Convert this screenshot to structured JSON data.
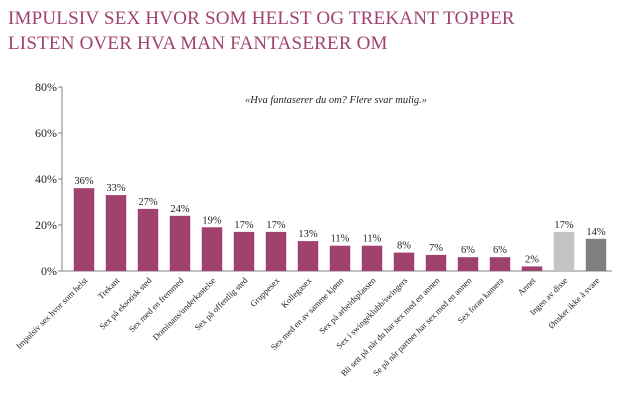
{
  "title": {
    "line1": "IMPULSIV SEX HVOR SOM HELST OG TREKANT TOPPER",
    "line2": "LISTEN OVER HVA MAN FANTASERER OM"
  },
  "chart_data": {
    "type": "bar",
    "annotation": "«Hva fantaserer du om? Flere svar mulig.»",
    "ylim": [
      0,
      80
    ],
    "yticks": [
      "0%",
      "20%",
      "40%",
      "60%",
      "80%"
    ],
    "grid": false,
    "categories": [
      "Impulsiv sex hvor som helst",
      "Trekant",
      "Sex på eksotisk sted",
      "Sex med en fremmed",
      "Dominans/underkastelse",
      "Sex på offentlig sted",
      "Gruppesex",
      "Kollegasex",
      "Sex med en av samme kjønn",
      "Sex på arbeidsplassen",
      "Sex i swingeklubb/swingers",
      "Bli sett på når du har sex med en annen",
      "Se på når partner har sex med en annen",
      "Sex foran kamera",
      "Annet",
      "Ingen av disse",
      "Ønsker ikke å svare"
    ],
    "values": [
      36,
      33,
      27,
      24,
      19,
      17,
      17,
      13,
      11,
      11,
      8,
      7,
      6,
      6,
      2,
      17,
      14
    ],
    "value_labels": [
      "36%",
      "33%",
      "27%",
      "24%",
      "19%",
      "17%",
      "17%",
      "13%",
      "11%",
      "11%",
      "8%",
      "7%",
      "6%",
      "6%",
      "2%",
      "17%",
      "14%"
    ],
    "colors": [
      "#a0426f",
      "#a0426f",
      "#a0426f",
      "#a0426f",
      "#a0426f",
      "#a0426f",
      "#a0426f",
      "#a0426f",
      "#a0426f",
      "#a0426f",
      "#a0426f",
      "#a0426f",
      "#a0426f",
      "#a0426f",
      "#a0426f",
      "#c4c4c4",
      "#808080"
    ]
  }
}
